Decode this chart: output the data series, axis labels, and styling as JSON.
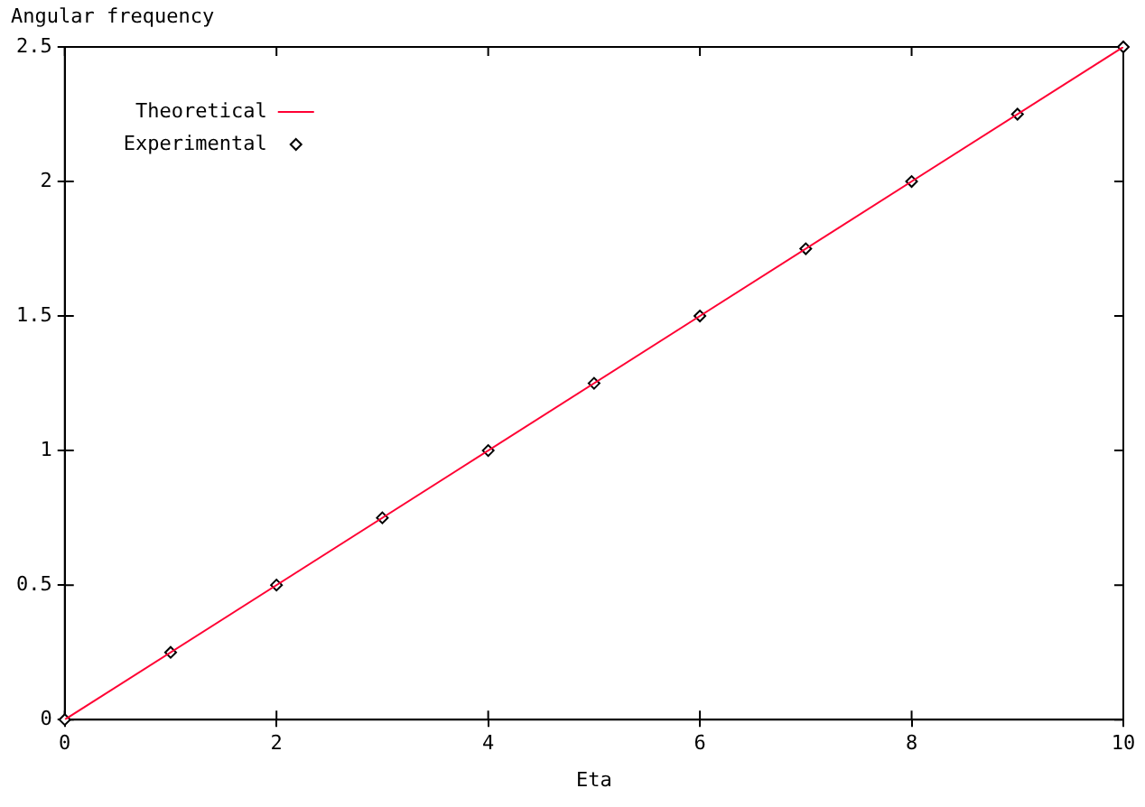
{
  "chart_data": {
    "type": "line",
    "xlabel": "Eta",
    "ylabel": "Angular frequency",
    "xlim": [
      0,
      10
    ],
    "xticks": [
      0,
      2,
      4,
      6,
      8,
      10
    ],
    "ylim": [
      0,
      2.5
    ],
    "yticks": [
      0,
      0.5,
      1,
      1.5,
      2,
      2.5
    ],
    "grid": false,
    "legend": "top left",
    "series": [
      {
        "name": "Theoretical",
        "type": "line",
        "color": "#ff0033",
        "marker": "none",
        "line_style": "solid",
        "x": [
          0,
          10
        ],
        "values": [
          0,
          2.5
        ]
      },
      {
        "name": "Experimental",
        "type": "scatter",
        "color": "#000000",
        "marker": "diamond",
        "x": [
          0,
          1,
          2,
          3,
          4,
          5,
          6,
          7,
          8,
          9,
          10
        ],
        "values": [
          0,
          0.25,
          0.5,
          0.75,
          1,
          1.25,
          1.5,
          1.75,
          2,
          2.25,
          2.5
        ]
      }
    ]
  }
}
